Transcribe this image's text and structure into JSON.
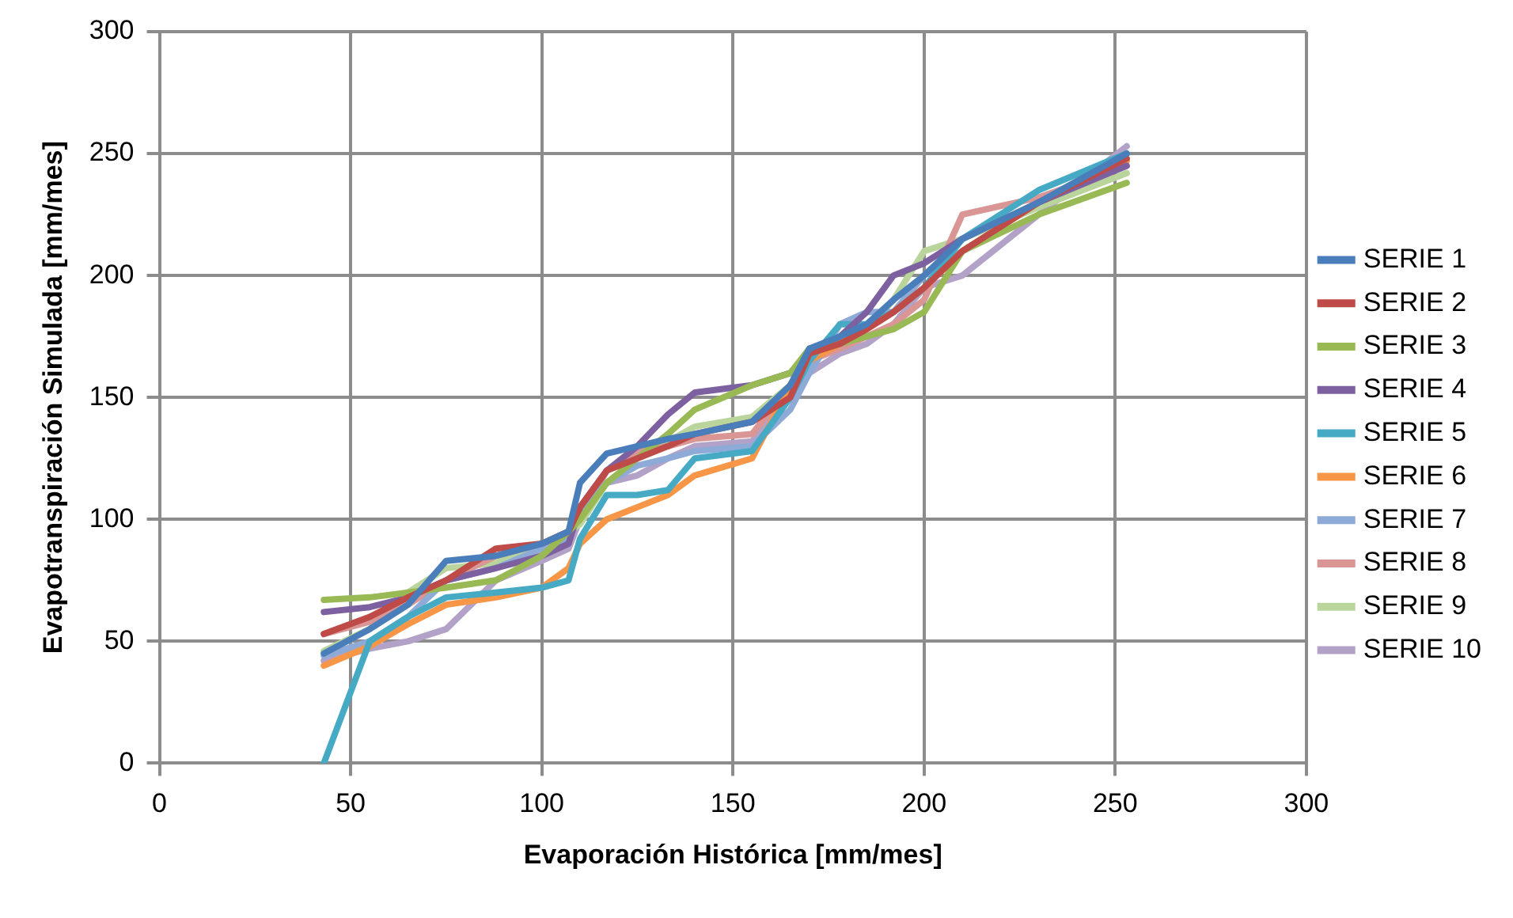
{
  "chart_data": {
    "type": "line",
    "xlabel": "Evaporación Histórica [mm/mes]",
    "ylabel": "Evapotranspiración Simulada [mm/mes]",
    "x": [
      43,
      55,
      65,
      75,
      88,
      100,
      107,
      110,
      117,
      125,
      133,
      140,
      155,
      165,
      170,
      178,
      185,
      192,
      200,
      210,
      230,
      253
    ],
    "xlim": [
      0,
      300
    ],
    "xticks": [
      0,
      50,
      100,
      150,
      200,
      250,
      300
    ],
    "ylim": [
      0,
      300
    ],
    "yticks": [
      0,
      50,
      100,
      150,
      200,
      250,
      300
    ],
    "grid": true,
    "legend": "right",
    "marker": "none",
    "line_style": "solid",
    "series": [
      {
        "name": "SERIE 1",
        "color": "#4a7ebb",
        "values": [
          45,
          55,
          65,
          83,
          85,
          90,
          95,
          115,
          127,
          130,
          133,
          135,
          140,
          155,
          170,
          175,
          180,
          190,
          200,
          215,
          230,
          250
        ]
      },
      {
        "name": "SERIE 2",
        "color": "#be4b48",
        "values": [
          53,
          60,
          68,
          75,
          88,
          90,
          95,
          105,
          120,
          125,
          130,
          135,
          140,
          150,
          168,
          172,
          178,
          185,
          195,
          210,
          230,
          248
        ]
      },
      {
        "name": "SERIE 3",
        "color": "#98b954",
        "values": [
          67,
          68,
          70,
          72,
          75,
          85,
          95,
          100,
          115,
          125,
          135,
          145,
          155,
          160,
          170,
          172,
          175,
          178,
          185,
          210,
          225,
          238
        ]
      },
      {
        "name": "SERIE 4",
        "color": "#7d60a0",
        "values": [
          62,
          64,
          68,
          75,
          80,
          85,
          90,
          105,
          120,
          130,
          143,
          152,
          155,
          160,
          168,
          175,
          185,
          200,
          205,
          215,
          230,
          245
        ]
      },
      {
        "name": "SERIE 5",
        "color": "#46aac5",
        "values": [
          0,
          50,
          60,
          68,
          70,
          72,
          75,
          92,
          110,
          110,
          112,
          125,
          128,
          150,
          165,
          180,
          180,
          185,
          195,
          215,
          235,
          250
        ]
      },
      {
        "name": "SERIE 6",
        "color": "#f79646",
        "values": [
          40,
          48,
          57,
          65,
          68,
          72,
          80,
          90,
          100,
          105,
          110,
          118,
          125,
          155,
          165,
          172,
          178,
          185,
          195,
          210,
          230,
          247
        ]
      },
      {
        "name": "SERIE 7",
        "color": "#8eaad7",
        "values": [
          44,
          50,
          60,
          75,
          80,
          88,
          92,
          103,
          115,
          122,
          125,
          128,
          130,
          145,
          160,
          180,
          185,
          185,
          200,
          210,
          230,
          250
        ]
      },
      {
        "name": "SERIE 8",
        "color": "#d99694",
        "values": [
          53,
          58,
          65,
          75,
          85,
          90,
          95,
          100,
          120,
          128,
          130,
          133,
          135,
          155,
          165,
          170,
          175,
          180,
          190,
          225,
          232,
          245
        ]
      },
      {
        "name": "SERIE 9",
        "color": "#b9d59b",
        "values": [
          46,
          55,
          70,
          80,
          82,
          90,
          95,
          98,
          115,
          125,
          132,
          138,
          142,
          155,
          170,
          172,
          178,
          190,
          210,
          215,
          228,
          242
        ]
      },
      {
        "name": "SERIE 10",
        "color": "#b3a2c7",
        "values": [
          42,
          47,
          50,
          55,
          75,
          83,
          88,
          100,
          115,
          118,
          125,
          130,
          132,
          150,
          160,
          168,
          172,
          180,
          195,
          200,
          225,
          253
        ]
      }
    ]
  }
}
